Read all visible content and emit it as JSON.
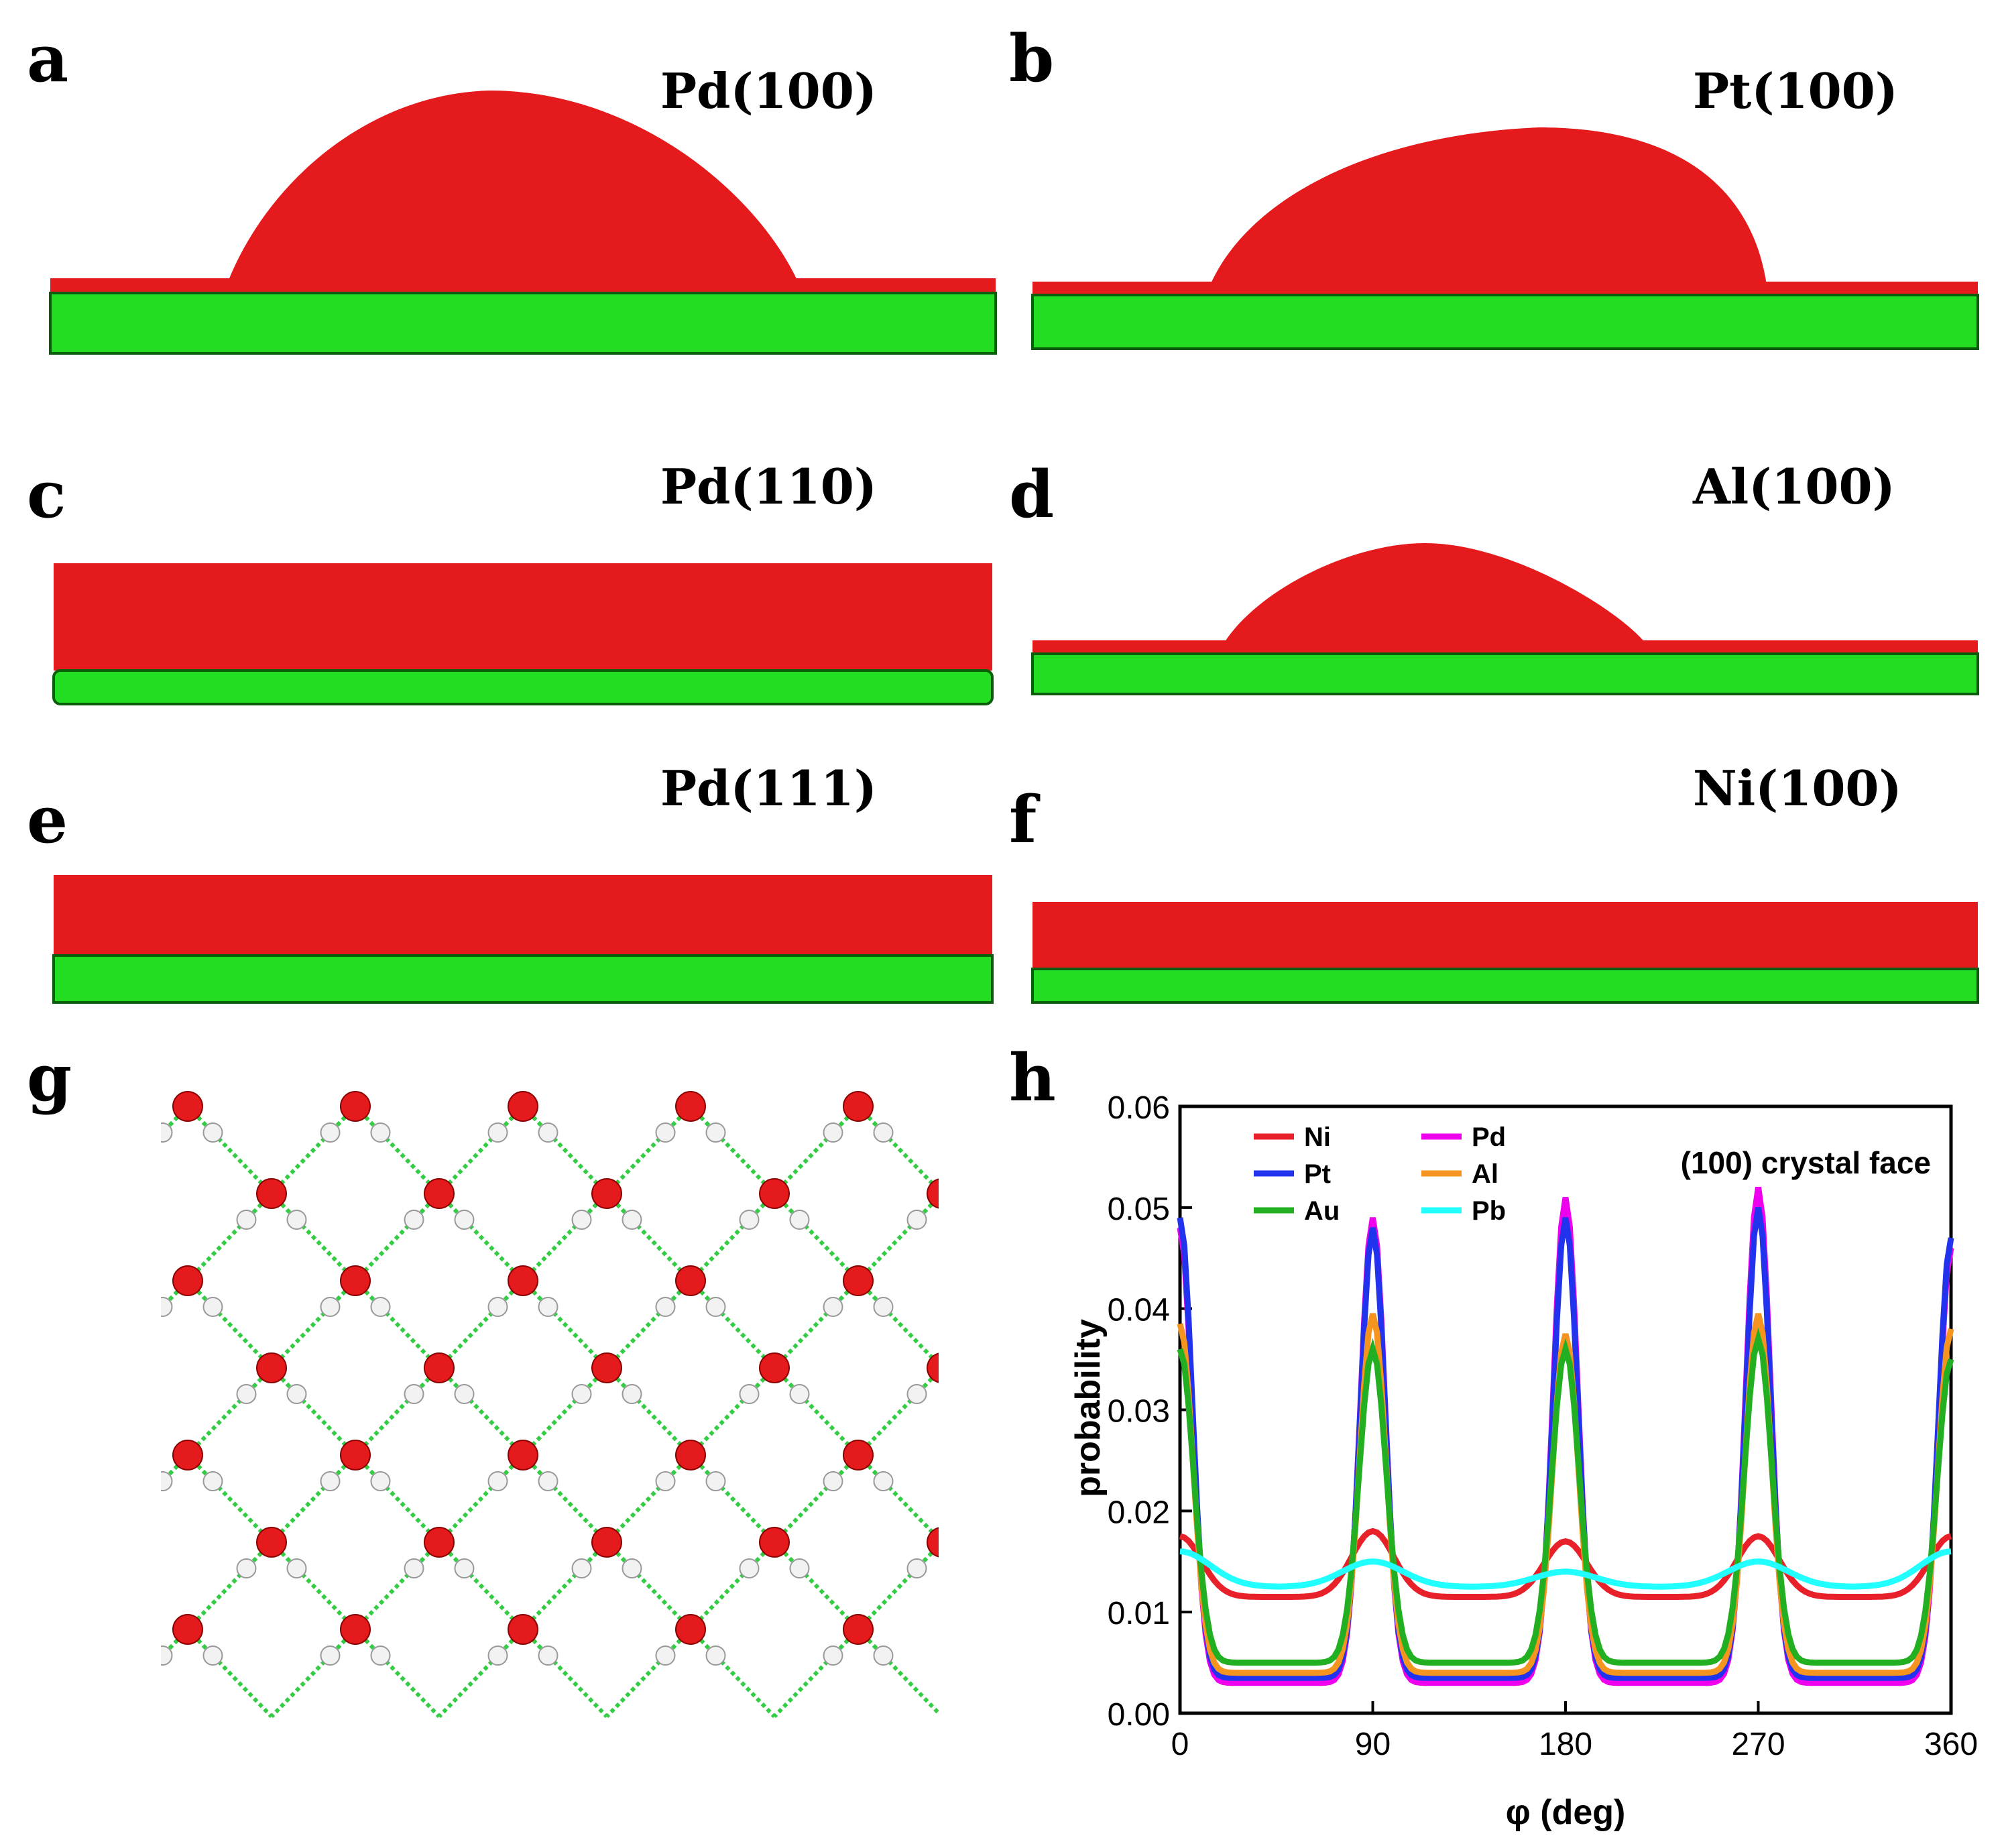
{
  "figure": {
    "panels": [
      {
        "letter": "a",
        "label": "Pd(100)"
      },
      {
        "letter": "b",
        "label": "Pt(100)"
      },
      {
        "letter": "c",
        "label": "Pd(110)"
      },
      {
        "letter": "d",
        "label": "Al(100)"
      },
      {
        "letter": "e",
        "label": "Pd(111)"
      },
      {
        "letter": "f",
        "label": "Ni(100)"
      },
      {
        "letter": "g",
        "label": ""
      },
      {
        "letter": "h",
        "label": ""
      }
    ]
  },
  "colors": {
    "oxygen": "#e41a1c",
    "hydrogen": "#f2f2f2",
    "metal": "#22dd22",
    "hbond": "#33cc44"
  },
  "chart_data": {
    "type": "line",
    "title": "",
    "annotation": "(100) crystal face",
    "xlabel": "φ (deg)",
    "ylabel": "probability",
    "xlim": [
      0,
      360
    ],
    "ylim": [
      0,
      0.06
    ],
    "xticks": [
      0,
      90,
      180,
      270,
      360
    ],
    "xtick_labels": [
      "0",
      "90",
      "180",
      "270",
      "360"
    ],
    "yticks": [
      0,
      0.01,
      0.02,
      0.03,
      0.04,
      0.05,
      0.06
    ],
    "ytick_labels": [
      "0.00",
      "0.01",
      "0.02",
      "0.03",
      "0.04",
      "0.05",
      "0.06"
    ],
    "legend_position": "top-left",
    "series": [
      {
        "name": "Ni",
        "color": "#e8202a",
        "base": 0.0115,
        "peaks": [
          0.0175,
          0.018,
          0.017,
          0.0175,
          0.0175
        ],
        "width": 14
      },
      {
        "name": "Pd",
        "color": "#ee00ee",
        "base": 0.003,
        "peaks": [
          0.048,
          0.049,
          0.051,
          0.052,
          0.046
        ],
        "width": 8
      },
      {
        "name": "Pt",
        "color": "#2233ee",
        "base": 0.0035,
        "peaks": [
          0.049,
          0.048,
          0.049,
          0.05,
          0.047
        ],
        "width": 8
      },
      {
        "name": "Al",
        "color": "#f5941e",
        "base": 0.004,
        "peaks": [
          0.0385,
          0.0395,
          0.0375,
          0.0395,
          0.038
        ],
        "width": 8.5
      },
      {
        "name": "Au",
        "color": "#22b022",
        "base": 0.005,
        "peaks": [
          0.036,
          0.036,
          0.036,
          0.037,
          0.035
        ],
        "width": 9
      },
      {
        "name": "Pb",
        "color": "#22ffff",
        "base": 0.0125,
        "peaks": [
          0.016,
          0.015,
          0.014,
          0.015,
          0.016
        ],
        "width": 20
      }
    ]
  }
}
